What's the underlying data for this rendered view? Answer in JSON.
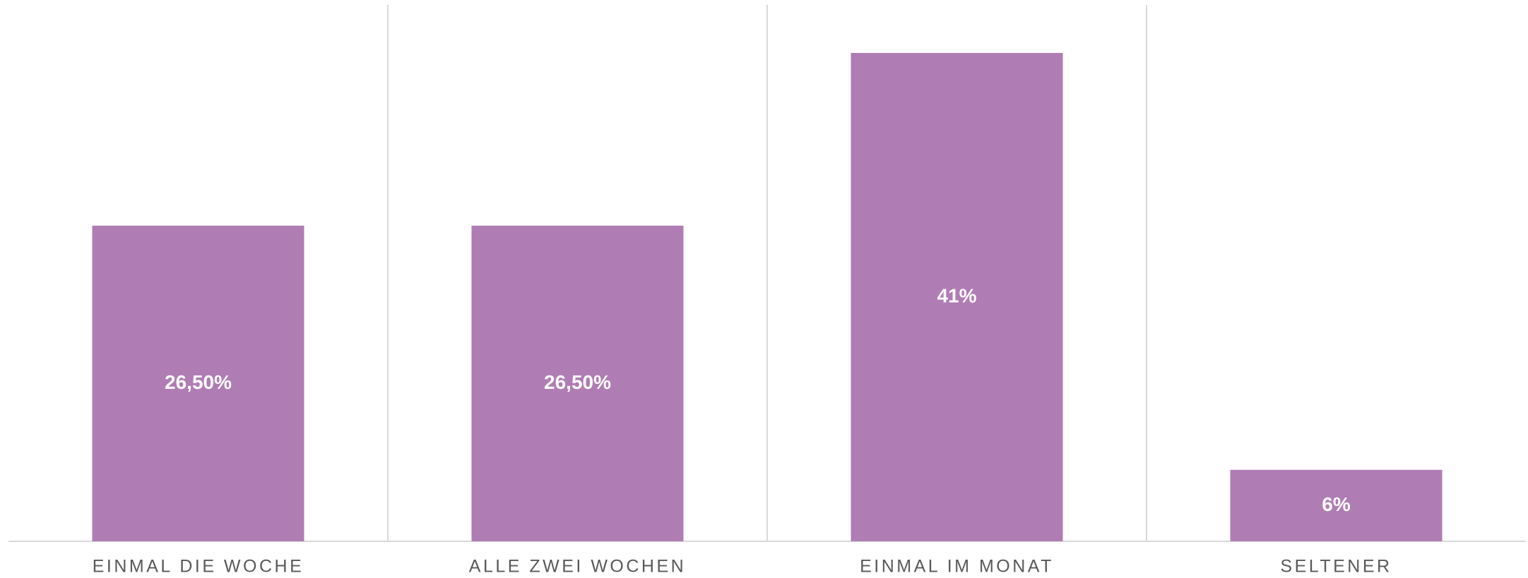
{
  "chart_data": {
    "type": "bar",
    "categories": [
      "EINMAL DIE WOCHE",
      "ALLE ZWEI WOCHEN",
      "EINMAL IM MONAT",
      "SELTENER"
    ],
    "values": [
      26.5,
      26.5,
      41,
      6
    ],
    "value_labels": [
      "26,50%",
      "26,50%",
      "41%",
      "6%"
    ],
    "color": "#b07cb4"
  }
}
